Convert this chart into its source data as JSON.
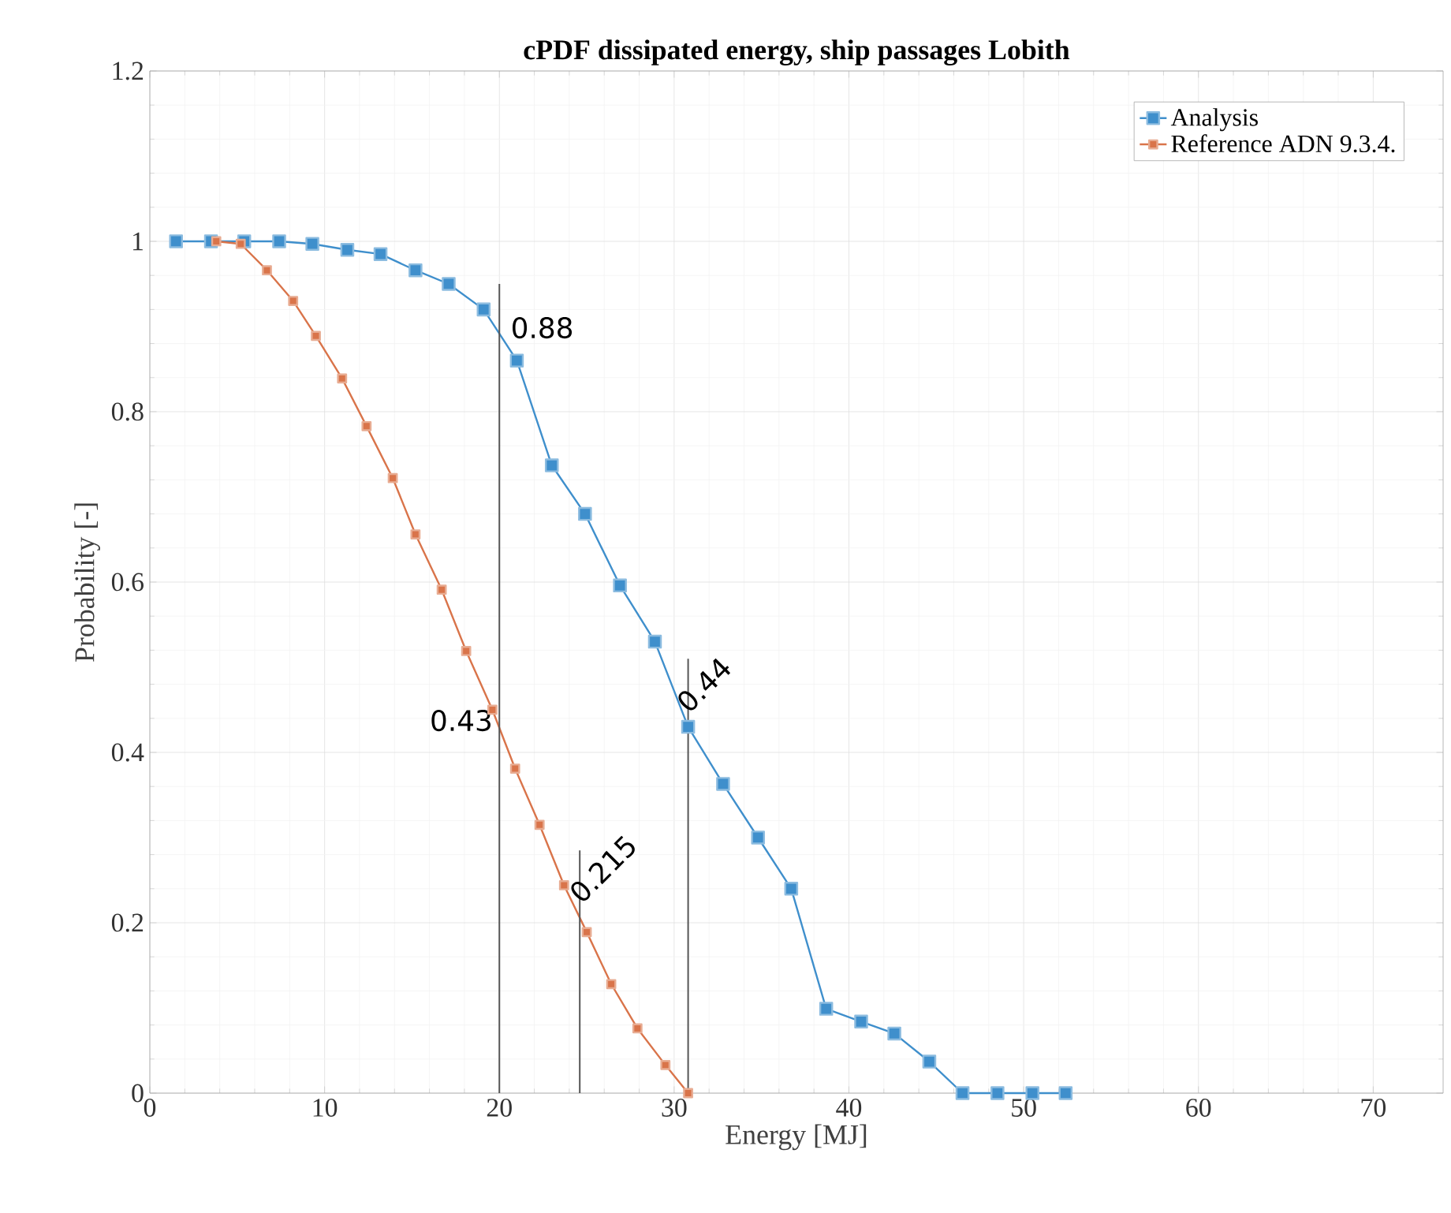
{
  "chart_data": {
    "type": "line",
    "title": "cPDF dissipated energy, ship passages Lobith",
    "xlabel": "Energy [MJ]",
    "ylabel": "Probability [-]",
    "xlim": [
      0,
      74
    ],
    "ylim": [
      0,
      1.2
    ],
    "xticks": [
      0,
      10,
      20,
      30,
      40,
      50,
      60,
      70
    ],
    "yticks": [
      0,
      0.2,
      0.4,
      0.6,
      0.8,
      1,
      1.2
    ],
    "grid": true,
    "legend": "top right",
    "marker": "square",
    "line_style": "solid",
    "series": [
      {
        "name": "Analysis",
        "color": "#3f8fcc",
        "x": [
          1.5,
          3.5,
          5.4,
          7.4,
          9.3,
          11.3,
          13.2,
          15.2,
          17.1,
          19.1,
          21.0,
          23.0,
          24.9,
          26.9,
          28.9,
          30.8,
          32.8,
          34.8,
          36.7,
          38.7,
          40.7,
          42.6,
          44.6,
          46.5,
          48.5,
          50.5,
          52.4
        ],
        "values": [
          1.0,
          1.0,
          1.0,
          1.0,
          0.997,
          0.99,
          0.985,
          0.966,
          0.95,
          0.92,
          0.86,
          0.737,
          0.68,
          0.596,
          0.53,
          0.43,
          0.363,
          0.3,
          0.24,
          0.099,
          0.084,
          0.07,
          0.037,
          0,
          0,
          0,
          0
        ]
      },
      {
        "name": "Reference ADN 9.3.4.",
        "color": "#d9744a",
        "x": [
          3.8,
          5.2,
          6.7,
          8.2,
          9.5,
          11.0,
          12.4,
          13.9,
          15.2,
          16.7,
          18.1,
          19.6,
          20.9,
          22.3,
          23.7,
          25.0,
          26.4,
          27.9,
          29.5,
          30.8
        ],
        "values": [
          1.0,
          0.997,
          0.966,
          0.93,
          0.889,
          0.839,
          0.783,
          0.722,
          0.656,
          0.591,
          0.519,
          0.45,
          0.381,
          0.315,
          0.244,
          0.189,
          0.128,
          0.076,
          0.033,
          0
        ]
      }
    ],
    "ref_lines": [
      {
        "axis": "x",
        "value": 20,
        "color": "#555555"
      },
      {
        "axis": "x",
        "value": 24.6,
        "color": "#555555"
      },
      {
        "axis": "x",
        "value": 30.8,
        "color": "#555555"
      }
    ],
    "annotations": [
      {
        "text": "0.88",
        "x": 20,
        "y": 0.88
      },
      {
        "text": "0.43",
        "x": 20,
        "y": 0.43
      },
      {
        "text": "0.215",
        "x": 24.6,
        "y": 0.215
      },
      {
        "text": "0.44",
        "x": 30.8,
        "y": 0.44
      }
    ]
  }
}
